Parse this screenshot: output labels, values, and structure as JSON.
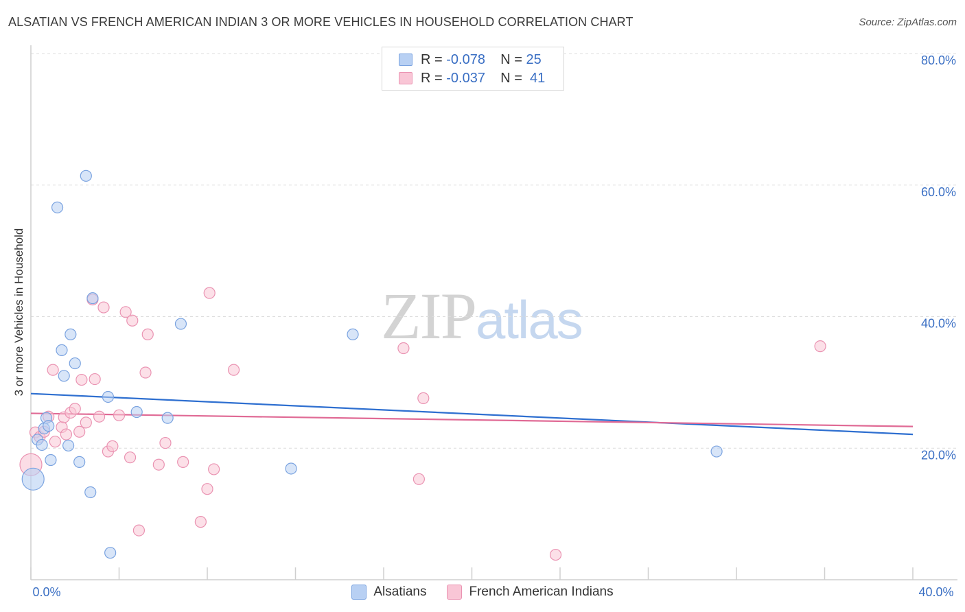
{
  "header": {
    "title": "ALSATIAN VS FRENCH AMERICAN INDIAN 3 OR MORE VEHICLES IN HOUSEHOLD CORRELATION CHART",
    "source": "Source: ZipAtlas.com"
  },
  "watermark": {
    "zip": "ZIP",
    "atlas": "atlas"
  },
  "legend": {
    "rows": [
      {
        "r_label": "R =",
        "r_value": "-0.078",
        "n_label": "N =",
        "n_value": "25"
      },
      {
        "r_label": "R =",
        "r_value": "-0.037",
        "n_label": "N =",
        "n_value": "41"
      }
    ]
  },
  "bottom_legend": {
    "series1": "Alsatians",
    "series2": "French American Indians"
  },
  "colors": {
    "alsatian_fill": "#b8d0f3",
    "alsatian_stroke": "#7aa3e0",
    "alsatian_line": "#2e6fd0",
    "french_fill": "#f9c6d6",
    "french_stroke": "#ea93b2",
    "french_line": "#e06a95",
    "tick_text": "#3a6fc4"
  },
  "chart_data": {
    "type": "scatter",
    "title": "ALSATIAN VS FRENCH AMERICAN INDIAN 3 OR MORE VEHICLES IN HOUSEHOLD CORRELATION CHART",
    "xlabel": "",
    "ylabel": "3 or more Vehicles in Household",
    "xlim": [
      0,
      40
    ],
    "ylim": [
      0,
      80
    ],
    "x_tick_labels": [
      "0.0%",
      "40.0%"
    ],
    "y_ticks": [
      20,
      40,
      60,
      80
    ],
    "y_tick_labels": [
      "20.0%",
      "40.0%",
      "60.0%",
      "80.0%"
    ],
    "grid": true,
    "legend_position": "top-center",
    "series": [
      {
        "name": "Alsatians",
        "R": -0.078,
        "N": 25,
        "points": [
          [
            0.1,
            15.3
          ],
          [
            0.3,
            21.3
          ],
          [
            0.5,
            20.5
          ],
          [
            0.6,
            23.0
          ],
          [
            0.7,
            24.6
          ],
          [
            0.8,
            23.4
          ],
          [
            0.9,
            18.2
          ],
          [
            1.2,
            56.6
          ],
          [
            1.4,
            34.9
          ],
          [
            1.5,
            31.0
          ],
          [
            1.7,
            20.4
          ],
          [
            1.8,
            37.3
          ],
          [
            2.0,
            32.9
          ],
          [
            2.2,
            17.9
          ],
          [
            2.5,
            61.4
          ],
          [
            2.7,
            13.3
          ],
          [
            2.8,
            42.8
          ],
          [
            3.5,
            27.8
          ],
          [
            3.6,
            4.1
          ],
          [
            4.8,
            25.5
          ],
          [
            6.2,
            24.6
          ],
          [
            6.8,
            38.9
          ],
          [
            11.8,
            16.9
          ],
          [
            14.6,
            37.3
          ],
          [
            31.1,
            19.5
          ]
        ],
        "trend": {
          "x": [
            0,
            40
          ],
          "y": [
            28.3,
            22.1
          ]
        }
      },
      {
        "name": "French American Indians",
        "R": -0.037,
        "N": 41,
        "points": [
          [
            0.0,
            17.5
          ],
          [
            0.2,
            22.4
          ],
          [
            0.4,
            21.7
          ],
          [
            0.6,
            22.5
          ],
          [
            0.8,
            24.8
          ],
          [
            1.0,
            31.9
          ],
          [
            1.1,
            21.0
          ],
          [
            1.4,
            23.2
          ],
          [
            1.5,
            24.7
          ],
          [
            1.6,
            22.1
          ],
          [
            1.8,
            25.4
          ],
          [
            2.0,
            26.0
          ],
          [
            2.2,
            22.5
          ],
          [
            2.3,
            30.4
          ],
          [
            2.5,
            23.9
          ],
          [
            2.8,
            42.6
          ],
          [
            2.9,
            30.5
          ],
          [
            3.1,
            24.8
          ],
          [
            3.3,
            41.4
          ],
          [
            3.5,
            19.5
          ],
          [
            3.7,
            20.3
          ],
          [
            4.0,
            25.0
          ],
          [
            4.3,
            40.7
          ],
          [
            4.5,
            18.6
          ],
          [
            4.6,
            39.4
          ],
          [
            4.9,
            7.5
          ],
          [
            5.2,
            31.5
          ],
          [
            5.3,
            37.3
          ],
          [
            5.8,
            17.5
          ],
          [
            6.1,
            20.8
          ],
          [
            6.9,
            17.9
          ],
          [
            7.7,
            8.8
          ],
          [
            8.0,
            13.8
          ],
          [
            8.1,
            43.6
          ],
          [
            8.3,
            16.8
          ],
          [
            9.2,
            31.9
          ],
          [
            16.9,
            35.2
          ],
          [
            17.6,
            15.3
          ],
          [
            17.8,
            27.6
          ],
          [
            23.8,
            3.8
          ],
          [
            35.8,
            35.5
          ]
        ],
        "trend": {
          "x": [
            0,
            40
          ],
          "y": [
            25.3,
            23.3
          ]
        }
      }
    ]
  }
}
